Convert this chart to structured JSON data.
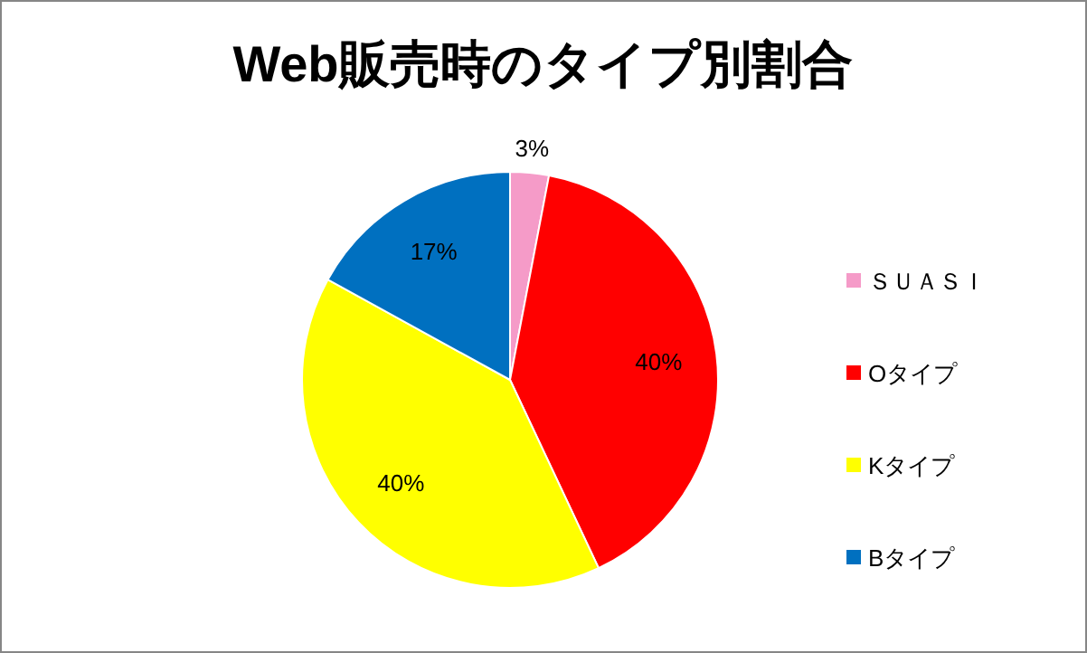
{
  "chart_data": {
    "type": "pie",
    "title": "Web販売時のタイプ別割合",
    "categories": [
      "ＳＵＡＳＩ",
      "Oタイプ",
      "Kタイプ",
      "Bタイプ"
    ],
    "values": [
      3,
      40,
      40,
      17
    ],
    "colors": [
      "#f59bc8",
      "#ff0000",
      "#ffff00",
      "#0070c0"
    ],
    "value_labels": [
      "3%",
      "40%",
      "40%",
      "17%"
    ],
    "legend": "right"
  }
}
